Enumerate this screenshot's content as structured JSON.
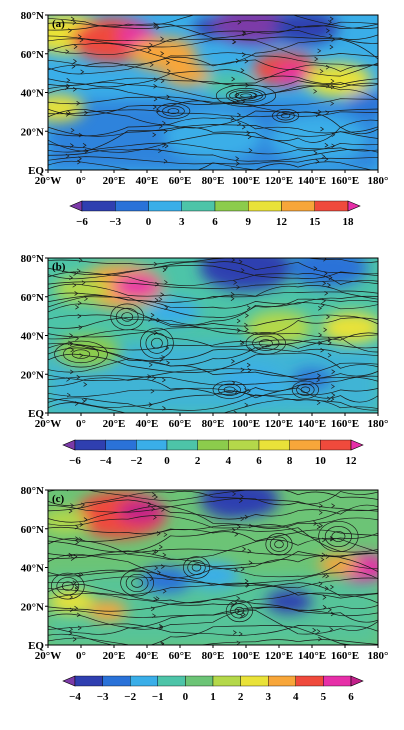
{
  "panels": [
    {
      "label": "(a)",
      "y_ticks": [
        "80°N",
        "60°N",
        "40°N",
        "20°N",
        "EQ"
      ],
      "x_ticks": [
        "20°W",
        "0°",
        "20°E",
        "40°E",
        "60°E",
        "80°E",
        "100°E",
        "120°E",
        "140°E",
        "160°E",
        "180°"
      ],
      "colorbar": {
        "labels": [
          "−6",
          "−3",
          "0",
          "3",
          "6",
          "9",
          "12",
          "15",
          "18"
        ],
        "colors": [
          "#7c3aa8",
          "#2f3fb0",
          "#2a72d8",
          "#3aaee8",
          "#4dc4a8",
          "#8ccc4c",
          "#e9e239",
          "#f7a63a",
          "#ef4a3c",
          "#e62fa8"
        ]
      },
      "blobs": [
        {
          "x": 0.06,
          "y": 0.12,
          "r": 0.12,
          "level": 6
        },
        {
          "x": 0.2,
          "y": 0.16,
          "r": 0.13,
          "level": 8
        },
        {
          "x": 0.27,
          "y": 0.13,
          "r": 0.06,
          "level": 9
        },
        {
          "x": 0.35,
          "y": 0.25,
          "r": 0.1,
          "level": 7
        },
        {
          "x": 0.42,
          "y": 0.38,
          "r": 0.07,
          "level": 7
        },
        {
          "x": 0.5,
          "y": 0.08,
          "r": 0.06,
          "level": 1
        },
        {
          "x": 0.62,
          "y": 0.06,
          "r": 0.12,
          "level": 0
        },
        {
          "x": 0.78,
          "y": 0.08,
          "r": 0.1,
          "level": 1
        },
        {
          "x": 0.72,
          "y": 0.35,
          "r": 0.1,
          "level": 8
        },
        {
          "x": 0.74,
          "y": 0.38,
          "r": 0.05,
          "level": 9
        },
        {
          "x": 0.88,
          "y": 0.42,
          "r": 0.1,
          "level": 6
        },
        {
          "x": 0.55,
          "y": 0.45,
          "r": 0.08,
          "level": 4
        },
        {
          "x": 0.97,
          "y": 0.57,
          "r": 0.07,
          "level": 2
        },
        {
          "x": 0.5,
          "y": 0.78,
          "r": 0.15,
          "level": 3
        },
        {
          "x": 0.82,
          "y": 0.8,
          "r": 0.15,
          "level": 3
        },
        {
          "x": 0.03,
          "y": 0.6,
          "r": 0.08,
          "level": 6
        }
      ],
      "vortices": [
        {
          "x": 0.38,
          "y": 0.62,
          "rx": 0.05,
          "ry": 0.035
        },
        {
          "x": 0.6,
          "y": 0.52,
          "rx": 0.09,
          "ry": 0.05
        },
        {
          "x": 0.6,
          "y": 0.52,
          "rx": 0.05,
          "ry": 0.025
        },
        {
          "x": 0.72,
          "y": 0.65,
          "rx": 0.04,
          "ry": 0.03
        }
      ]
    },
    {
      "label": "(b)",
      "y_ticks": [
        "80°N",
        "60°N",
        "40°N",
        "20°N",
        "EQ"
      ],
      "x_ticks": [
        "20°W",
        "0°",
        "20°E",
        "40°E",
        "60°E",
        "80°E",
        "100°E",
        "120°E",
        "140°E",
        "160°E",
        "180°"
      ],
      "colorbar": {
        "labels": [
          "−6",
          "−4",
          "−2",
          "0",
          "2",
          "4",
          "6",
          "8",
          "10",
          "12"
        ],
        "colors": [
          "#7c3aa8",
          "#2f3fb0",
          "#2a72d8",
          "#3aaee8",
          "#4dc4a8",
          "#8ccc4c",
          "#b4d84a",
          "#e9e239",
          "#f7a63a",
          "#ef4a3c",
          "#e62fa8"
        ]
      },
      "blobs": [
        {
          "x": 0.22,
          "y": 0.18,
          "r": 0.13,
          "level": 8
        },
        {
          "x": 0.27,
          "y": 0.18,
          "r": 0.07,
          "level": 10
        },
        {
          "x": 0.1,
          "y": 0.2,
          "r": 0.08,
          "level": 6
        },
        {
          "x": 0.6,
          "y": 0.06,
          "r": 0.14,
          "level": 1
        },
        {
          "x": 0.85,
          "y": 0.06,
          "r": 0.12,
          "level": 2
        },
        {
          "x": 0.7,
          "y": 0.45,
          "r": 0.1,
          "level": 6
        },
        {
          "x": 0.92,
          "y": 0.45,
          "r": 0.09,
          "level": 7
        },
        {
          "x": 0.12,
          "y": 0.6,
          "r": 0.1,
          "level": 5
        },
        {
          "x": 0.38,
          "y": 0.35,
          "r": 0.08,
          "level": 3
        },
        {
          "x": 0.62,
          "y": 0.8,
          "r": 0.1,
          "level": 3
        },
        {
          "x": 0.8,
          "y": 0.78,
          "r": 0.06,
          "level": 2
        }
      ],
      "vortices": [
        {
          "x": 0.24,
          "y": 0.38,
          "rx": 0.05,
          "ry": 0.06
        },
        {
          "x": 0.1,
          "y": 0.62,
          "rx": 0.08,
          "ry": 0.06
        },
        {
          "x": 0.33,
          "y": 0.55,
          "rx": 0.05,
          "ry": 0.07
        },
        {
          "x": 0.55,
          "y": 0.85,
          "rx": 0.05,
          "ry": 0.04
        },
        {
          "x": 0.78,
          "y": 0.85,
          "rx": 0.04,
          "ry": 0.04
        },
        {
          "x": 0.66,
          "y": 0.55,
          "rx": 0.06,
          "ry": 0.05
        }
      ]
    },
    {
      "label": "(c)",
      "y_ticks": [
        "80°N",
        "60°N",
        "40°N",
        "20°N",
        "EQ"
      ],
      "x_ticks": [
        "20°W",
        "0°",
        "20°E",
        "40°E",
        "60°E",
        "80°E",
        "100°E",
        "120°E",
        "140°E",
        "160°E",
        "180°"
      ],
      "colorbar": {
        "labels": [
          "−4",
          "−3",
          "−2",
          "−1",
          "0",
          "1",
          "2",
          "3",
          "4",
          "5",
          "6"
        ],
        "colors": [
          "#7c3aa8",
          "#2f3fb0",
          "#2a72d8",
          "#3aaee8",
          "#4dc4a8",
          "#6cc476",
          "#b4d84a",
          "#e9e239",
          "#f7a63a",
          "#ef4a3c",
          "#e62fa8",
          "#c2208a"
        ]
      },
      "blobs": [
        {
          "x": 0.22,
          "y": 0.16,
          "r": 0.14,
          "level": 9
        },
        {
          "x": 0.28,
          "y": 0.14,
          "r": 0.07,
          "level": 11
        },
        {
          "x": 0.05,
          "y": 0.2,
          "r": 0.07,
          "level": 6
        },
        {
          "x": 0.58,
          "y": 0.06,
          "r": 0.12,
          "level": 1
        },
        {
          "x": 0.95,
          "y": 0.5,
          "r": 0.08,
          "level": 10
        },
        {
          "x": 0.88,
          "y": 0.48,
          "r": 0.06,
          "level": 8
        },
        {
          "x": 0.07,
          "y": 0.72,
          "r": 0.07,
          "level": 7
        },
        {
          "x": 0.18,
          "y": 0.78,
          "r": 0.06,
          "level": 8
        },
        {
          "x": 0.36,
          "y": 0.58,
          "r": 0.08,
          "level": 2
        },
        {
          "x": 0.5,
          "y": 0.55,
          "r": 0.08,
          "level": 3
        },
        {
          "x": 0.73,
          "y": 0.72,
          "r": 0.07,
          "level": 1
        },
        {
          "x": 0.62,
          "y": 0.28,
          "r": 0.07,
          "level": 5
        }
      ],
      "vortices": [
        {
          "x": 0.06,
          "y": 0.62,
          "rx": 0.05,
          "ry": 0.06
        },
        {
          "x": 0.27,
          "y": 0.6,
          "rx": 0.05,
          "ry": 0.06
        },
        {
          "x": 0.45,
          "y": 0.5,
          "rx": 0.04,
          "ry": 0.05
        },
        {
          "x": 0.7,
          "y": 0.35,
          "rx": 0.04,
          "ry": 0.05
        },
        {
          "x": 0.88,
          "y": 0.3,
          "rx": 0.06,
          "ry": 0.07
        },
        {
          "x": 0.58,
          "y": 0.78,
          "rx": 0.04,
          "ry": 0.05
        }
      ]
    }
  ]
}
